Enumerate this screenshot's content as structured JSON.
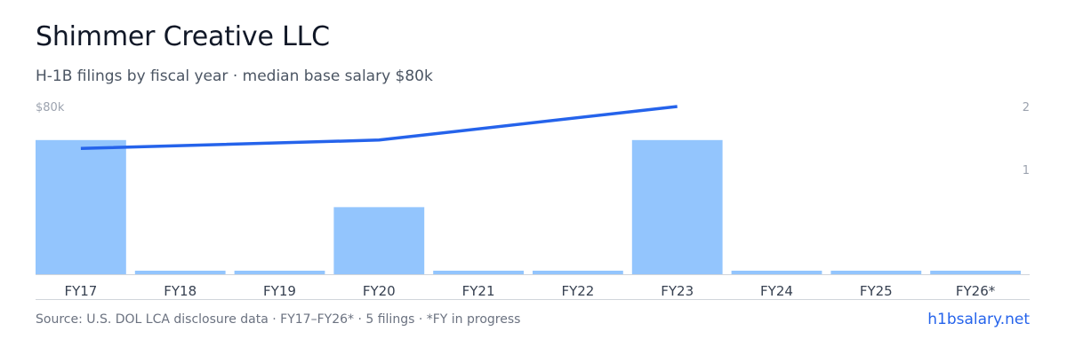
{
  "header": {
    "title": "Shimmer Creative LLC",
    "subtitle": "H-1B filings by fiscal year · median base salary $80k"
  },
  "footer": {
    "source": "Source: U.S. DOL LCA disclosure data · FY17–FY26* · 5 filings · *FY in progress",
    "brand": "h1bsalary.net"
  },
  "colors": {
    "bar": "#93c5fd",
    "line": "#2563eb",
    "axis": "#d1d5db",
    "tick_text": "#9ca3af",
    "label_text": "#374151"
  },
  "chart_data": {
    "type": "bar",
    "categories": [
      "FY17",
      "FY18",
      "FY19",
      "FY20",
      "FY21",
      "FY22",
      "FY23",
      "FY24",
      "FY25",
      "FY26*"
    ],
    "series": [
      {
        "type": "bar",
        "axis": "right",
        "values": [
          2,
          0,
          0,
          1,
          0,
          0,
          2,
          0,
          0,
          0
        ]
      },
      {
        "type": "line",
        "axis": "left",
        "points": [
          {
            "x": "FY17",
            "y": 60000
          },
          {
            "x": "FY20",
            "y": 64000
          },
          {
            "x": "FY23",
            "y": 80000
          }
        ]
      }
    ],
    "left_axis": {
      "label": "$80k",
      "value": 80000
    },
    "right_axis": {
      "ticks": [
        "2",
        "1"
      ],
      "ylim": [
        0,
        2
      ]
    },
    "left_ylim": [
      0,
      80000
    ],
    "grid": false
  }
}
